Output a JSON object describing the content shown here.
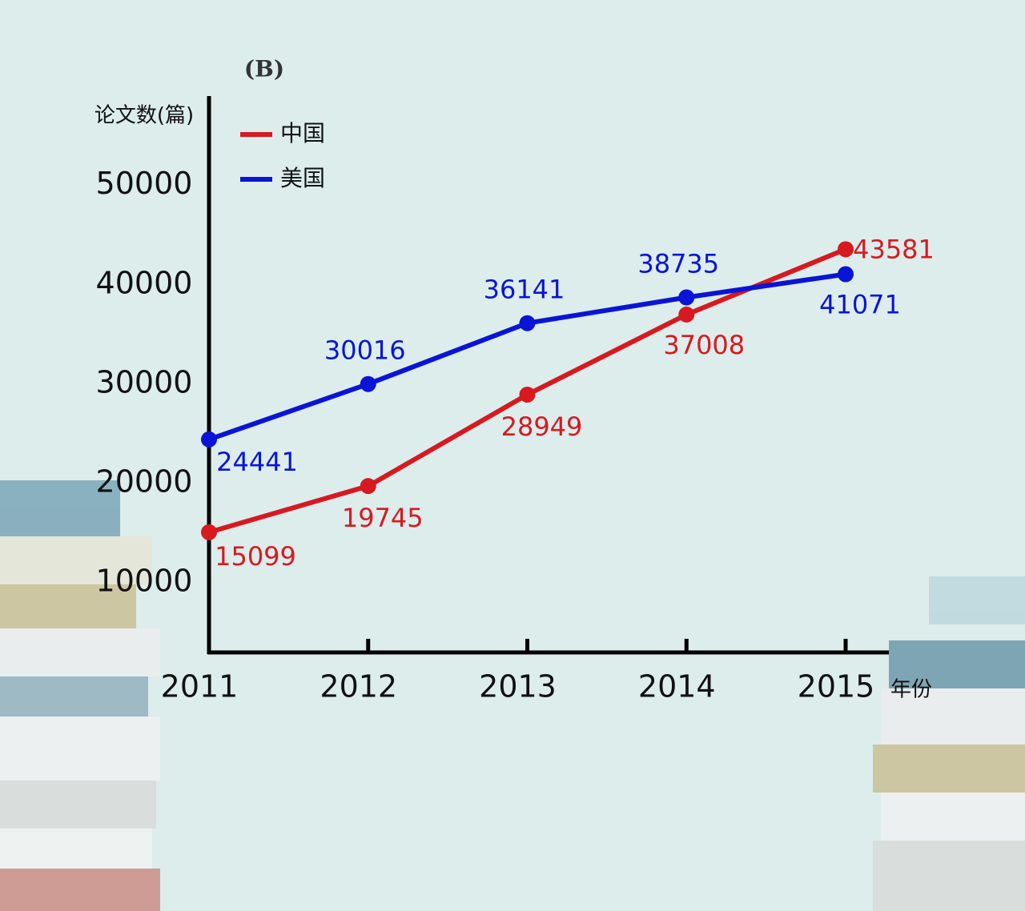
{
  "chart_data": {
    "type": "line",
    "title": "(B)",
    "y_label": "论文数(篇)",
    "x_label": "年份",
    "categories": [
      "2011",
      "2012",
      "2013",
      "2014",
      "2015"
    ],
    "series": [
      {
        "name": "中国",
        "color": "#d71920",
        "values": [
          15099,
          19745,
          28949,
          37008,
          43581
        ]
      },
      {
        "name": "美国",
        "color": "#0a14d6",
        "values": [
          24441,
          30016,
          36141,
          38735,
          41071
        ]
      }
    ],
    "ylim": [
      3000,
      59000
    ],
    "yticks": [
      10000,
      20000,
      30000,
      40000,
      50000
    ],
    "legend": "upper-left"
  }
}
